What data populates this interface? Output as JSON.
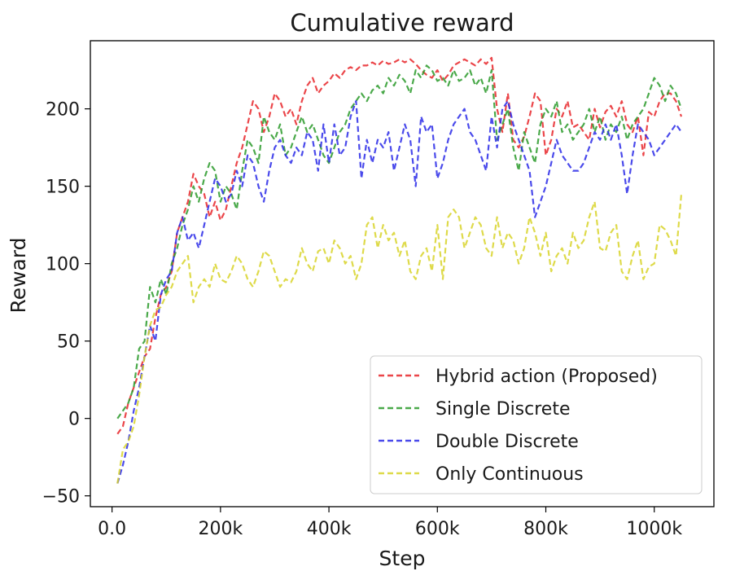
{
  "chart_data": {
    "type": "line",
    "title": "Cumulative reward",
    "xlabel": "Step",
    "ylabel": "Reward",
    "xlim": [
      -40000,
      1110000
    ],
    "ylim": [
      -57,
      244
    ],
    "xticks": [
      0,
      200000,
      400000,
      600000,
      800000,
      1000000
    ],
    "xtick_labels": [
      "0.0",
      "200k",
      "400k",
      "600k",
      "800k",
      "1000k"
    ],
    "yticks": [
      -50,
      0,
      50,
      100,
      150,
      200
    ],
    "ytick_labels": [
      "−50",
      "0",
      "50",
      "100",
      "150",
      "200"
    ],
    "grid": false,
    "legend_position": "lower-right",
    "line_style": "dashed",
    "x": [
      10000,
      20000,
      30000,
      40000,
      50000,
      60000,
      70000,
      80000,
      90000,
      100000,
      110000,
      120000,
      130000,
      140000,
      150000,
      160000,
      170000,
      180000,
      190000,
      200000,
      210000,
      220000,
      230000,
      240000,
      250000,
      260000,
      270000,
      280000,
      290000,
      300000,
      310000,
      320000,
      330000,
      340000,
      350000,
      360000,
      370000,
      380000,
      390000,
      400000,
      410000,
      420000,
      430000,
      440000,
      450000,
      460000,
      470000,
      480000,
      490000,
      500000,
      510000,
      520000,
      530000,
      540000,
      550000,
      560000,
      570000,
      580000,
      590000,
      600000,
      610000,
      620000,
      630000,
      640000,
      650000,
      660000,
      670000,
      680000,
      690000,
      700000,
      710000,
      720000,
      730000,
      740000,
      750000,
      760000,
      770000,
      780000,
      790000,
      800000,
      810000,
      820000,
      830000,
      840000,
      850000,
      860000,
      870000,
      880000,
      890000,
      900000,
      910000,
      920000,
      930000,
      940000,
      950000,
      960000,
      970000,
      980000,
      990000,
      1000000,
      1010000,
      1020000,
      1030000,
      1040000,
      1050000
    ],
    "series": [
      {
        "name": "Hybrid action (Proposed)",
        "color": "#e8262a",
        "values": [
          -10,
          -5,
          10,
          20,
          30,
          40,
          45,
          65,
          80,
          85,
          95,
          120,
          130,
          140,
          158,
          150,
          145,
          130,
          140,
          128,
          135,
          150,
          165,
          175,
          190,
          205,
          200,
          185,
          195,
          210,
          205,
          195,
          200,
          190,
          205,
          215,
          220,
          210,
          215,
          218,
          223,
          220,
          225,
          227,
          225,
          228,
          228,
          230,
          228,
          231,
          229,
          230,
          232,
          230,
          232,
          229,
          225,
          222,
          220,
          225,
          218,
          222,
          228,
          230,
          232,
          230,
          228,
          232,
          229,
          233,
          200,
          185,
          210,
          180,
          175,
          182,
          195,
          210,
          205,
          170,
          180,
          200,
          195,
          205,
          188,
          190,
          185,
          180,
          200,
          188,
          198,
          202,
          195,
          205,
          190,
          185,
          195,
          170,
          198,
          195,
          205,
          210,
          210,
          205,
          195
        ]
      },
      {
        "name": "Single Discrete",
        "color": "#2a9a2a",
        "values": [
          0,
          5,
          10,
          20,
          45,
          50,
          85,
          75,
          90,
          80,
          100,
          110,
          125,
          135,
          150,
          140,
          155,
          165,
          160,
          140,
          150,
          145,
          135,
          160,
          180,
          175,
          165,
          195,
          185,
          180,
          190,
          170,
          175,
          185,
          195,
          185,
          190,
          180,
          170,
          165,
          175,
          185,
          190,
          200,
          205,
          210,
          205,
          212,
          215,
          210,
          220,
          215,
          222,
          218,
          210,
          225,
          220,
          228,
          225,
          218,
          220,
          215,
          225,
          218,
          220,
          225,
          215,
          220,
          210,
          225,
          180,
          190,
          200,
          175,
          160,
          185,
          175,
          165,
          190,
          200,
          195,
          205,
          185,
          190,
          180,
          185,
          190,
          200,
          185,
          195,
          180,
          190,
          185,
          195,
          180,
          190,
          195,
          200,
          210,
          220,
          215,
          205,
          215,
          210,
          200
        ]
      },
      {
        "name": "Double Discrete",
        "color": "#2a2ae8",
        "values": [
          -42,
          -30,
          -15,
          5,
          20,
          40,
          60,
          50,
          80,
          90,
          95,
          120,
          130,
          115,
          120,
          110,
          125,
          140,
          155,
          150,
          140,
          145,
          160,
          150,
          170,
          165,
          150,
          140,
          160,
          175,
          180,
          170,
          165,
          175,
          170,
          185,
          180,
          160,
          190,
          165,
          190,
          170,
          175,
          195,
          205,
          155,
          180,
          165,
          180,
          175,
          185,
          160,
          175,
          190,
          180,
          150,
          195,
          185,
          190,
          155,
          165,
          180,
          190,
          195,
          200,
          185,
          180,
          170,
          160,
          195,
          175,
          200,
          205,
          190,
          180,
          170,
          160,
          130,
          140,
          150,
          165,
          180,
          170,
          165,
          160,
          160,
          165,
          175,
          185,
          180,
          190,
          180,
          190,
          170,
          145,
          170,
          190,
          185,
          180,
          170,
          175,
          180,
          185,
          190,
          185
        ]
      },
      {
        "name": "Only Continuous",
        "color": "#d8d42a",
        "values": [
          -42,
          -20,
          -15,
          -5,
          15,
          40,
          60,
          70,
          72,
          80,
          85,
          95,
          100,
          105,
          75,
          85,
          90,
          85,
          100,
          90,
          88,
          95,
          105,
          100,
          90,
          85,
          95,
          108,
          105,
          95,
          85,
          90,
          88,
          95,
          110,
          100,
          95,
          108,
          110,
          100,
          115,
          110,
          100,
          105,
          90,
          100,
          125,
          130,
          110,
          125,
          115,
          120,
          105,
          115,
          95,
          90,
          105,
          110,
          95,
          125,
          90,
          130,
          135,
          130,
          110,
          120,
          130,
          125,
          110,
          105,
          130,
          110,
          120,
          115,
          100,
          110,
          130,
          120,
          105,
          120,
          95,
          105,
          110,
          100,
          120,
          110,
          115,
          130,
          140,
          110,
          108,
          120,
          125,
          95,
          90,
          105,
          115,
          90,
          98,
          100,
          125,
          122,
          115,
          105,
          145
        ]
      }
    ]
  }
}
